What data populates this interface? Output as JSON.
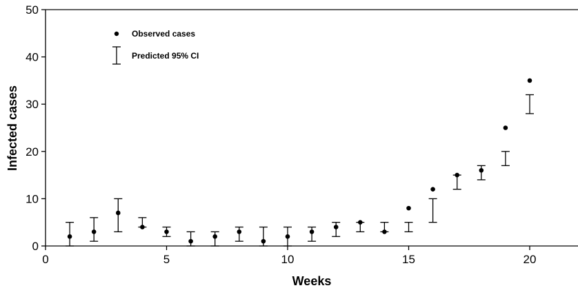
{
  "chart_data": {
    "type": "scatter",
    "xlabel": "Weeks",
    "ylabel": "Infected cases",
    "xlim": [
      0,
      22
    ],
    "ylim": [
      0,
      50
    ],
    "x_ticks": [
      0,
      5,
      10,
      15,
      20
    ],
    "y_ticks": [
      0,
      10,
      20,
      30,
      40,
      50
    ],
    "legend_position": "top-left",
    "series": [
      {
        "name": "Observed cases",
        "marker": "dot",
        "x": [
          1,
          2,
          3,
          4,
          5,
          6,
          7,
          8,
          9,
          10,
          11,
          12,
          13,
          14,
          15,
          16,
          17,
          18,
          19,
          20
        ],
        "y": [
          2,
          3,
          7,
          4,
          3,
          1,
          2,
          3,
          1,
          2,
          3,
          4,
          5,
          3,
          8,
          12,
          15,
          16,
          25,
          35
        ]
      },
      {
        "name": "Predicted 95% CI",
        "marker": "errorbar",
        "x": [
          1,
          2,
          3,
          4,
          5,
          6,
          7,
          8,
          9,
          10,
          11,
          12,
          13,
          14,
          15,
          16,
          17,
          18,
          19,
          20
        ],
        "low": [
          0,
          1,
          3,
          4,
          2,
          0,
          0,
          1,
          0,
          0,
          1,
          2,
          3,
          3,
          3,
          5,
          12,
          14,
          17,
          28
        ],
        "high": [
          5,
          6,
          10,
          6,
          4,
          3,
          3,
          4,
          4,
          4,
          4,
          5,
          5,
          5,
          5,
          10,
          15,
          17,
          20,
          32
        ]
      }
    ],
    "colors": {
      "marks": "#000000",
      "background": "#ffffff"
    }
  }
}
